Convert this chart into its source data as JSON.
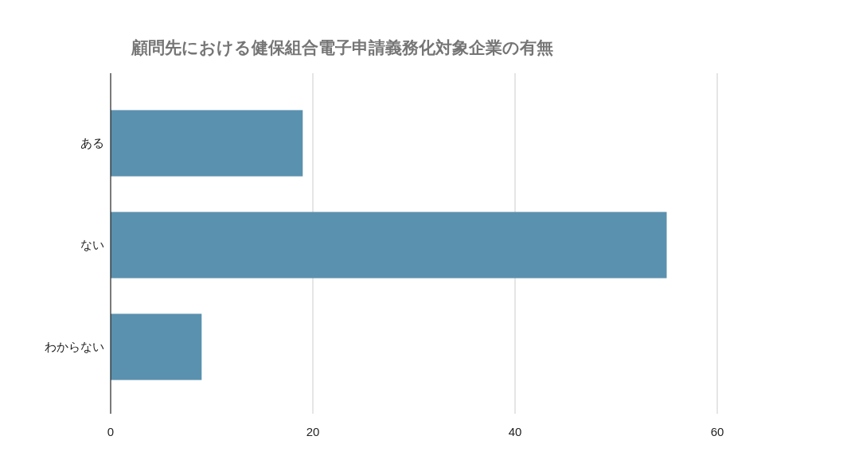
{
  "chart_data": {
    "type": "bar",
    "orientation": "horizontal",
    "title": "顧問先における健保組合電子申請義務化対象企業の有無",
    "categories": [
      "ある",
      "ない",
      "わからない"
    ],
    "values": [
      19,
      55,
      9
    ],
    "color": "#5a91ae",
    "xlim": [
      0,
      60
    ],
    "xticks": [
      0,
      20,
      40,
      60
    ],
    "grid": "x"
  }
}
